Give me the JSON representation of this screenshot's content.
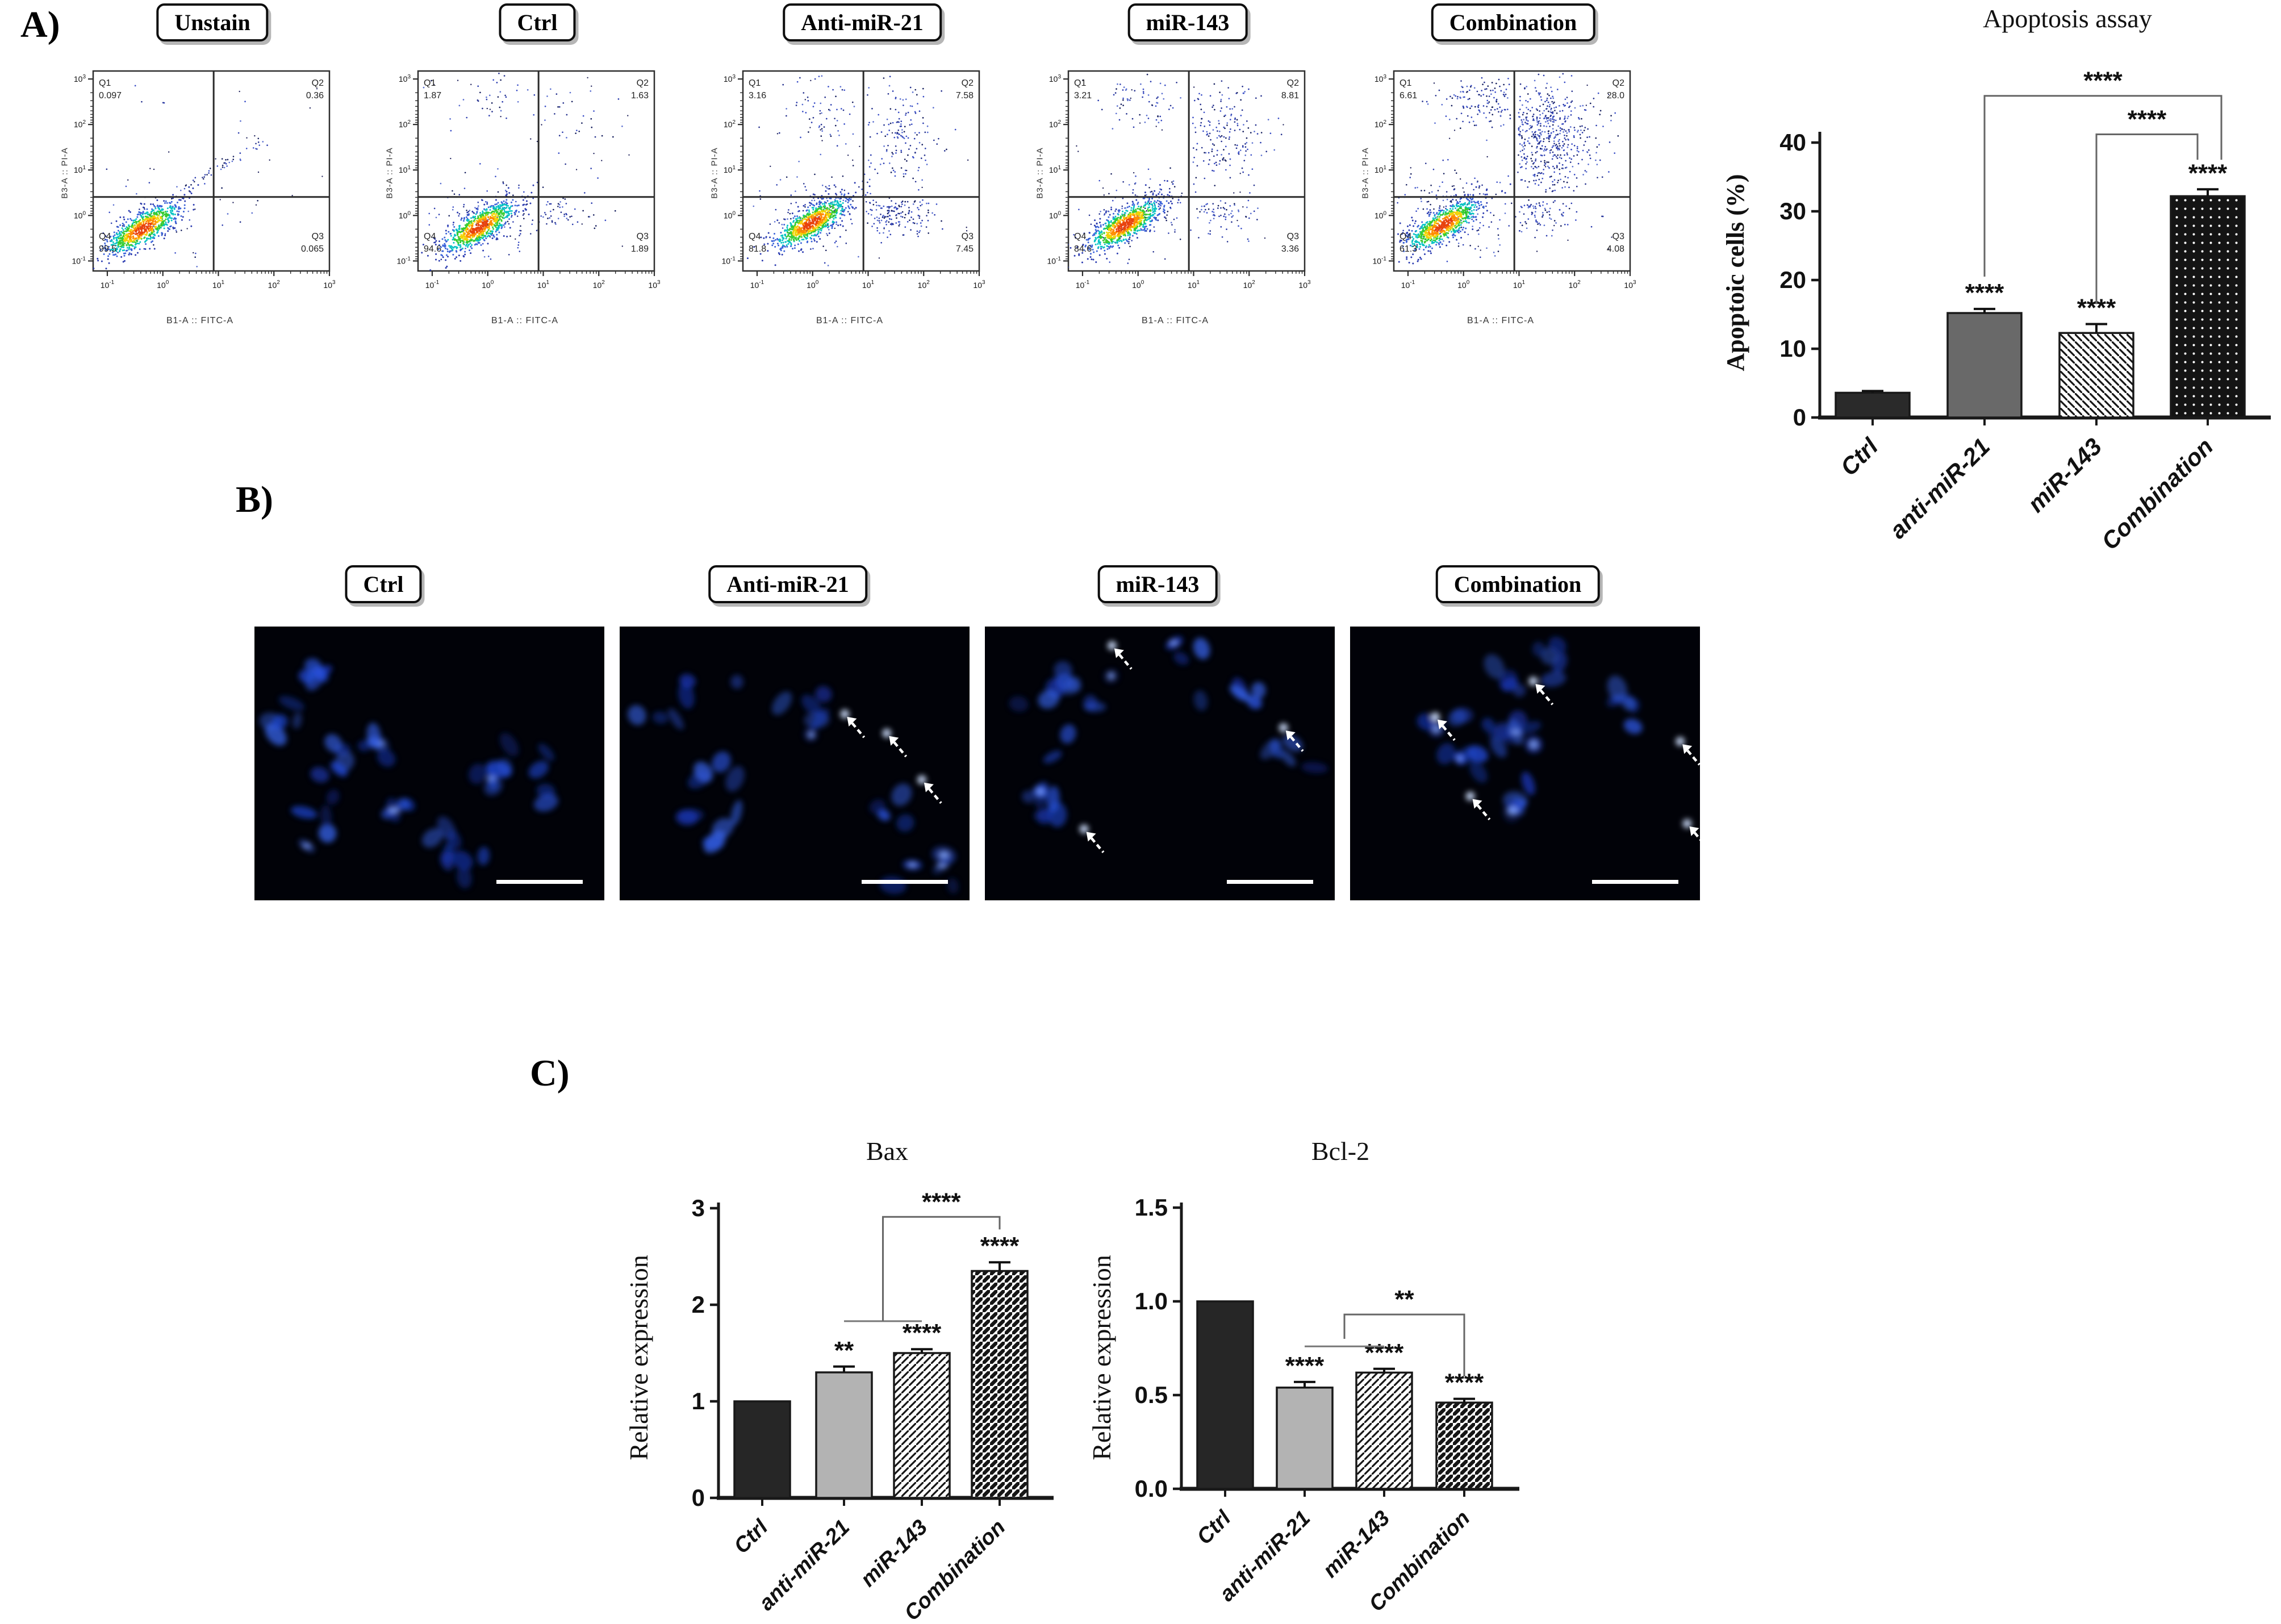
{
  "panels": {
    "a": "A)",
    "b": "B)",
    "c": "C)"
  },
  "flow": {
    "x_axis_label": "B1-A :: FITC-A",
    "y_axis_label": "B3-A :: PI-A",
    "x_tick_exponents": [
      -1,
      0,
      1,
      2,
      3
    ],
    "y_tick_exponents": [
      3,
      2,
      1,
      0,
      -1
    ],
    "plots": [
      {
        "title": "Unstain",
        "quadrants": {
          "Q1": "0.097",
          "Q2": "0.36",
          "Q3": "0.065",
          "Q4": "99.5"
        }
      },
      {
        "title": "Ctrl",
        "quadrants": {
          "Q1": "1.87",
          "Q2": "1.63",
          "Q3": "1.89",
          "Q4": "94.6"
        }
      },
      {
        "title": "Anti-miR-21",
        "quadrants": {
          "Q1": "3.16",
          "Q2": "7.58",
          "Q3": "7.45",
          "Q4": "81.8"
        }
      },
      {
        "title": "miR-143",
        "quadrants": {
          "Q1": "3.21",
          "Q2": "8.81",
          "Q3": "3.36",
          "Q4": "84.6"
        }
      },
      {
        "title": "Combination",
        "quadrants": {
          "Q1": "6.61",
          "Q2": "28.0",
          "Q3": "4.08",
          "Q4": "61.3"
        }
      }
    ]
  },
  "microscopy": {
    "stain": "blue-nuclei-fluorescence",
    "images": [
      {
        "title": "Ctrl",
        "arrows": []
      },
      {
        "title": "Anti-miR-21",
        "arrows": [
          [
            0.65,
            0.33
          ],
          [
            0.77,
            0.4
          ],
          [
            0.87,
            0.57
          ]
        ]
      },
      {
        "title": "miR-143",
        "arrows": [
          [
            0.37,
            0.08
          ],
          [
            0.86,
            0.38
          ],
          [
            0.29,
            0.75
          ]
        ]
      },
      {
        "title": "Combination",
        "arrows": [
          [
            0.53,
            0.21
          ],
          [
            0.25,
            0.34
          ],
          [
            0.95,
            0.43
          ],
          [
            0.35,
            0.63
          ],
          [
            0.97,
            0.73
          ]
        ]
      }
    ]
  },
  "chart_data": [
    {
      "type": "bar",
      "title": "Apoptosis assay",
      "ylabel": "Apoptoic cells (%)",
      "categories": [
        "Ctrl",
        "anti-miR-21",
        "miR-143",
        "Combination"
      ],
      "values": [
        3.6,
        15.2,
        12.3,
        32.2
      ],
      "errors": [
        0.25,
        0.6,
        1.3,
        1.0
      ],
      "significance": [
        "",
        "****",
        "****",
        "****"
      ],
      "comparisons": [
        {
          "from": "anti-miR-21",
          "to": "Combination",
          "label": "****"
        },
        {
          "from": "miR-143",
          "to": "Combination",
          "label": "****"
        }
      ],
      "yticks": [
        "0",
        "10",
        "20",
        "30",
        "40"
      ],
      "ylim": [
        0,
        40
      ],
      "bar_styles": [
        "solid-dark",
        "solid-gray",
        "diagonal-hatch",
        "black-dotted"
      ],
      "grid": false,
      "legend": "none"
    },
    {
      "type": "bar",
      "title": "Bax",
      "ylabel": "Relative expression",
      "categories": [
        "Ctrl",
        "anti-miR-21",
        "miR-143",
        "Combination"
      ],
      "values": [
        1.0,
        1.3,
        1.5,
        2.35
      ],
      "errors": [
        0,
        0.06,
        0.04,
        0.09
      ],
      "significance": [
        "",
        "**",
        "****",
        "****"
      ],
      "comparisons": [
        {
          "from": "anti-miR-21 + miR-143",
          "to": "Combination",
          "label": "****"
        }
      ],
      "yticks": [
        "0",
        "1",
        "2",
        "3"
      ],
      "ylim": [
        0,
        3
      ],
      "bar_styles": [
        "solid-dark",
        "solid-lightgray",
        "diagonal-hatch",
        "heavy-diagonal-hatch"
      ],
      "grid": false,
      "legend": "none"
    },
    {
      "type": "bar",
      "title": "Bcl-2",
      "ylabel": "Relative expression",
      "categories": [
        "Ctrl",
        "anti-miR-21",
        "miR-143",
        "Combination"
      ],
      "values": [
        1.0,
        0.54,
        0.62,
        0.46
      ],
      "errors": [
        0,
        0.03,
        0.02,
        0.02
      ],
      "significance": [
        "",
        "****",
        "****",
        "****"
      ],
      "comparisons": [
        {
          "from": "anti-miR-21 + miR-143",
          "to": "Combination",
          "label": "**"
        }
      ],
      "yticks": [
        "0.0",
        "0.5",
        "1.0",
        "1.5"
      ],
      "ylim": [
        0,
        1.5
      ],
      "bar_styles": [
        "solid-dark",
        "solid-lightgray",
        "diagonal-hatch",
        "heavy-diagonal-hatch"
      ],
      "grid": false,
      "legend": "none"
    }
  ]
}
